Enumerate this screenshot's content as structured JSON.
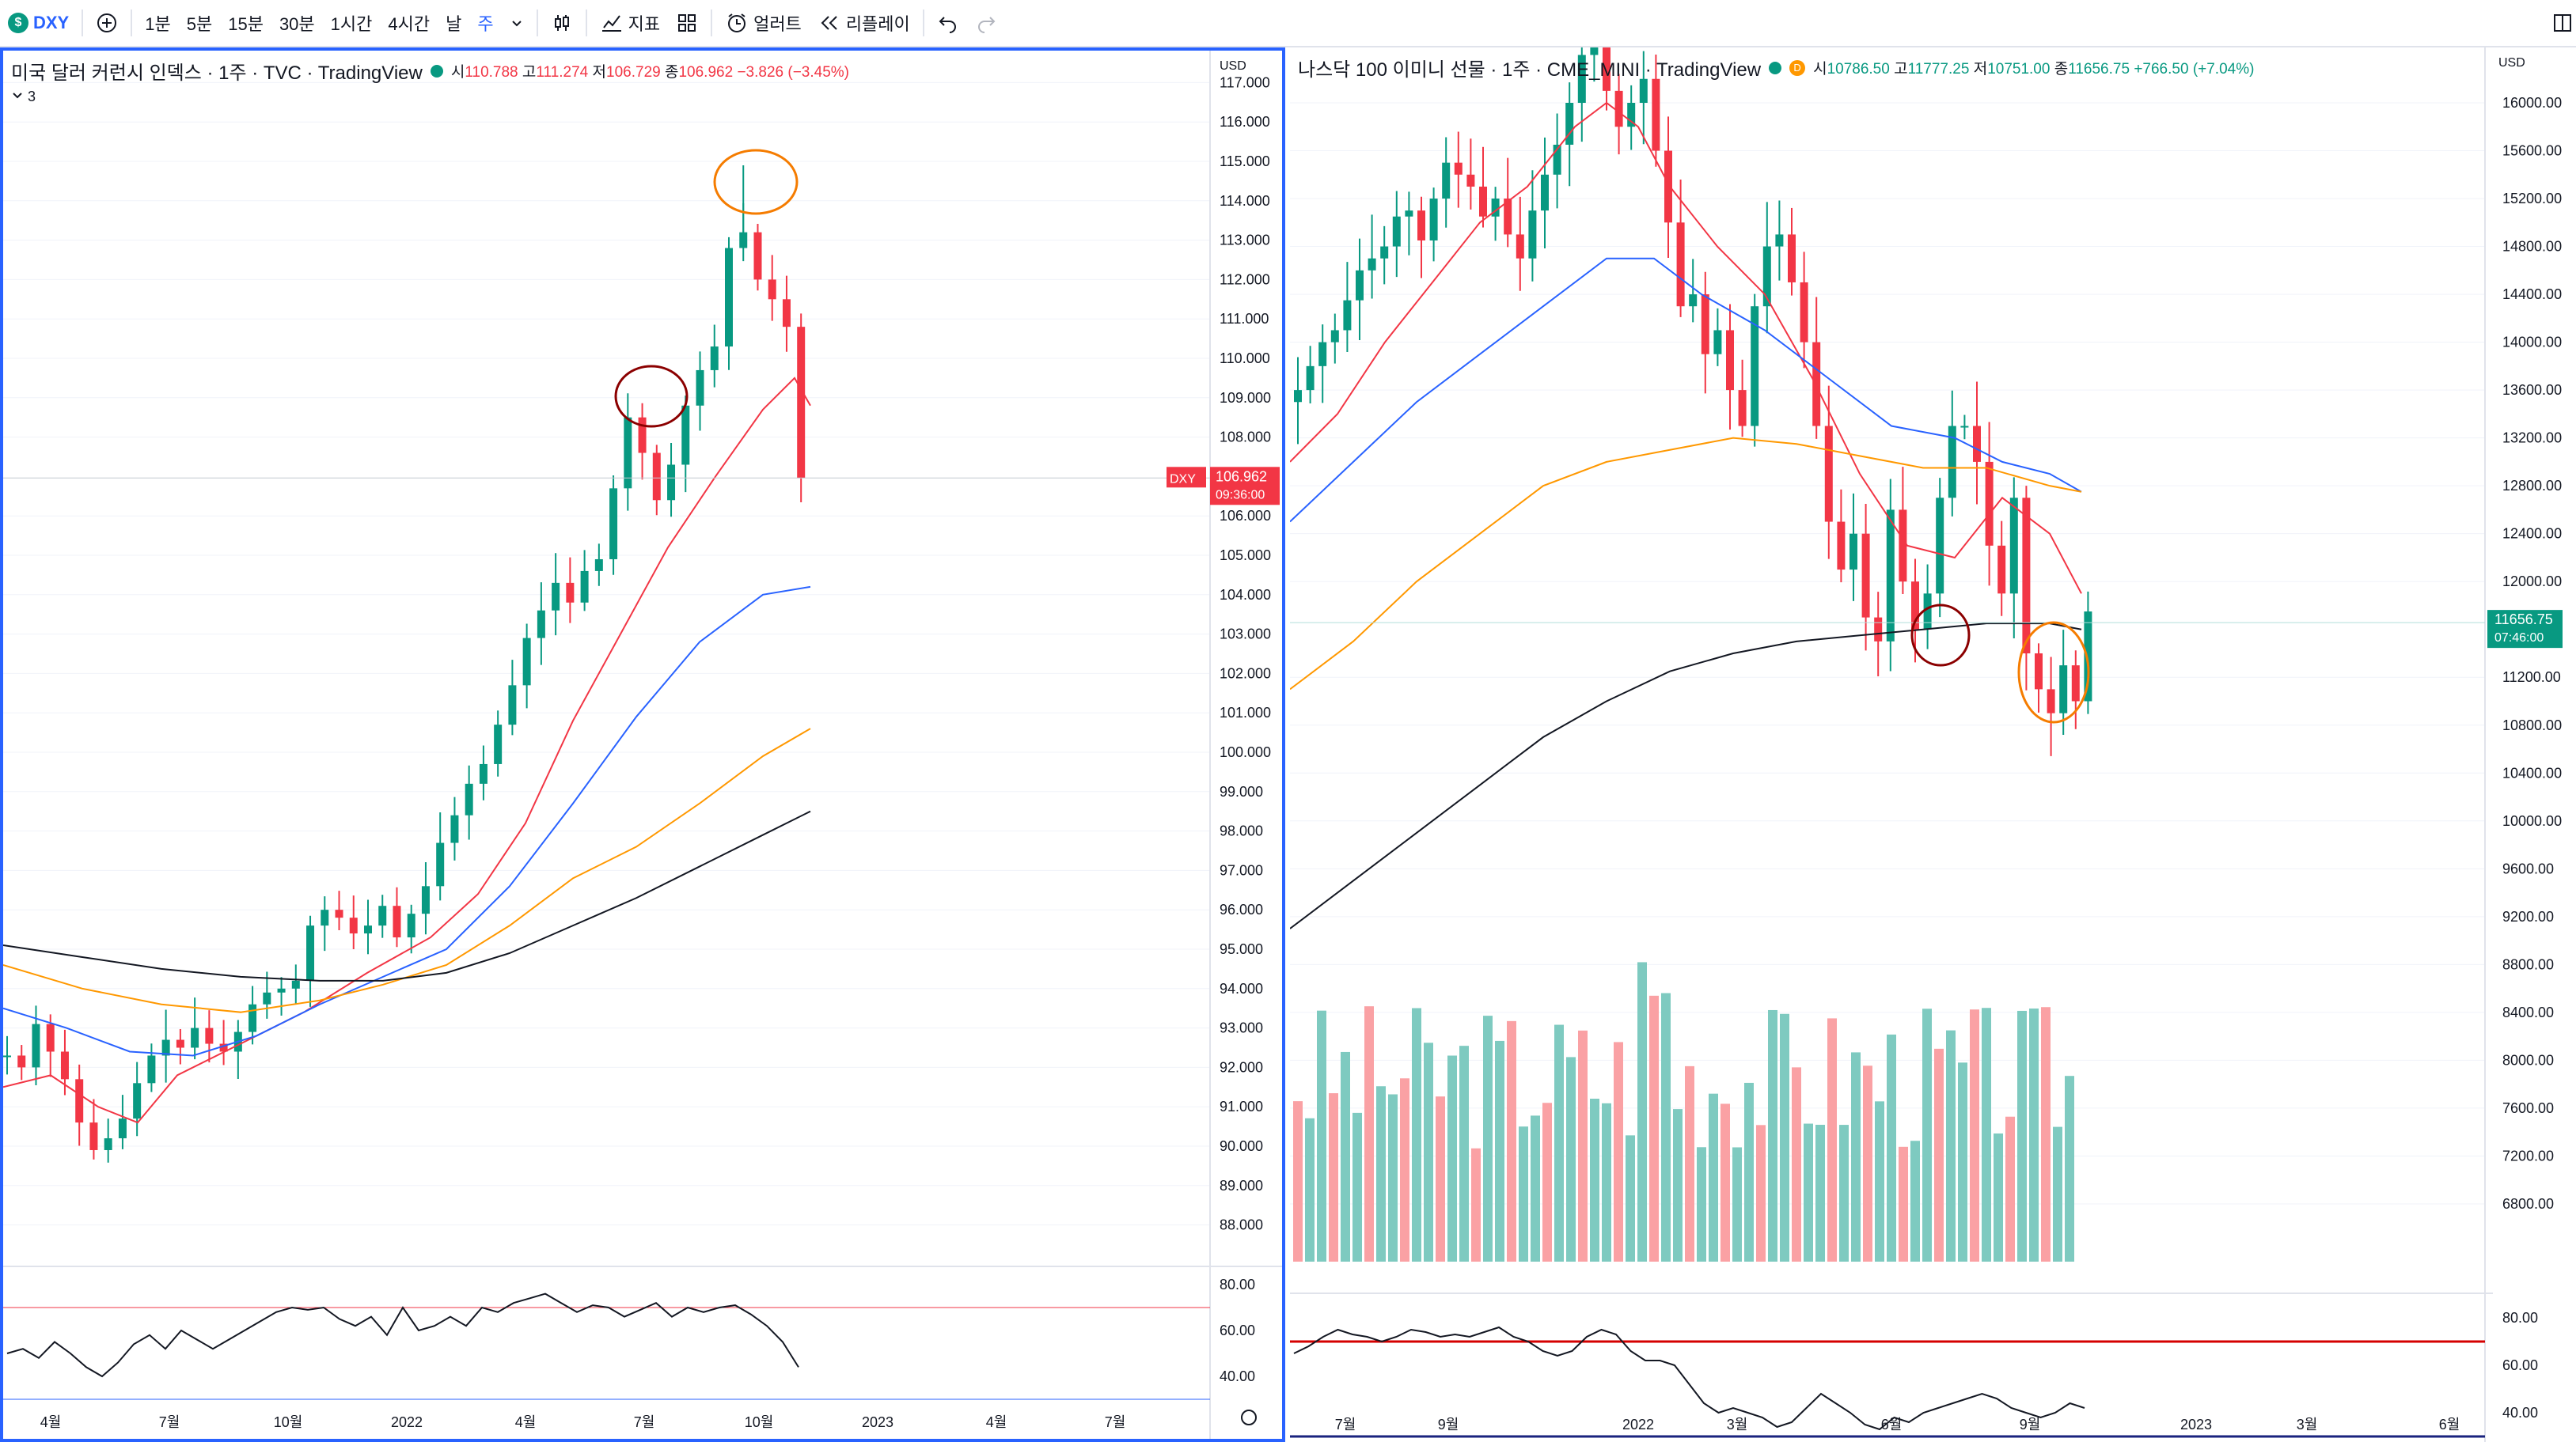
{
  "toolbar": {
    "symbol": "DXY",
    "intervals": [
      "1분",
      "5분",
      "15분",
      "30분",
      "1시간",
      "4시간",
      "날",
      "주"
    ],
    "active_interval": "주",
    "indicators_label": "지표",
    "alert_label": "얼러트",
    "replay_label": "리플레이"
  },
  "left": {
    "title": "미국 달러 커런시 인덱스 · 1주 · TVC · TradingView",
    "open_label": "시",
    "open": "110.788",
    "high_label": "고",
    "high": "111.274",
    "low_label": "저",
    "low": "106.729",
    "close_label": "종",
    "close": "106.962",
    "change": "−3.826 (−3.45%)",
    "collapse": "3",
    "currency": "USD",
    "price_ticks": [
      "117.000",
      "116.000",
      "115.000",
      "114.000",
      "113.000",
      "112.000",
      "111.000",
      "110.000",
      "109.000",
      "108.000",
      "106.000",
      "105.000",
      "104.000",
      "103.000",
      "102.000",
      "101.000",
      "100.000",
      "99.000",
      "98.000",
      "97.000",
      "96.000",
      "95.000",
      "94.000",
      "93.000",
      "92.000",
      "91.000",
      "90.000",
      "89.000",
      "88.000"
    ],
    "last_label": "DXY",
    "last_price": "106.962",
    "countdown": "09:36:00",
    "osc_ticks": [
      "80.00",
      "60.00",
      "40.00"
    ],
    "time_ticks": [
      "4월",
      "7월",
      "10월",
      "2022",
      "4월",
      "7월",
      "10월",
      "2023",
      "4월",
      "7월"
    ],
    "colors": {
      "up": "#089981",
      "down": "#f23645",
      "ma1": "#f23645",
      "ma2": "#2962ff",
      "ma3": "#ff9800",
      "ma4": "#131722"
    }
  },
  "right": {
    "title": "나스닥 100 이미니 선물 · 1주 · CME_MINI · TradingView",
    "d_badge": "D",
    "open_label": "시",
    "open": "10786.50",
    "high_label": "고",
    "high": "11777.25",
    "low_label": "저",
    "low": "10751.00",
    "close_label": "종",
    "close": "11656.75",
    "change": "+766.50 (+7.04%)",
    "currency": "USD",
    "price_ticks": [
      "16000.00",
      "15600.00",
      "15200.00",
      "14800.00",
      "14400.00",
      "14000.00",
      "13600.00",
      "13200.00",
      "12800.00",
      "12400.00",
      "12000.00",
      "11200.00",
      "10800.00",
      "10400.00",
      "10000.00",
      "9600.00",
      "9200.00",
      "8800.00",
      "8400.00",
      "8000.00",
      "7600.00",
      "7200.00",
      "6800.00"
    ],
    "last_price": "11656.75",
    "countdown": "07:46:00",
    "osc_ticks": [
      "80.00",
      "60.00",
      "40.00"
    ],
    "time_ticks": [
      "7월",
      "9월",
      "2022",
      "3월",
      "6월",
      "9월",
      "2023",
      "3월",
      "6월"
    ]
  }
}
